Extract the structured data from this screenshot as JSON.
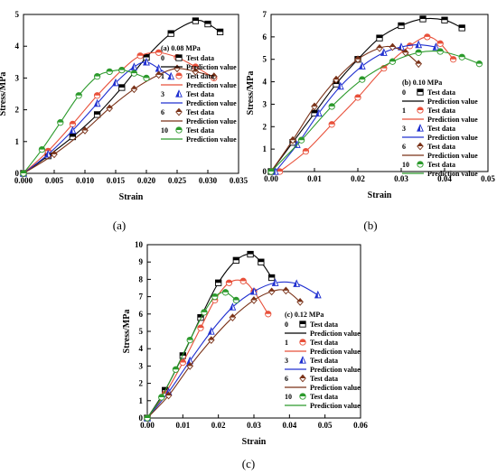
{
  "chart_data": [
    {
      "type": "line",
      "panel": "a",
      "caption": "(a)",
      "legend_title": "(a) 0.08 MPa",
      "xlabel": "Strain",
      "ylabel": "Stress/MPa",
      "xlim": [
        0,
        0.035
      ],
      "ylim": [
        0,
        5
      ],
      "xticks": [
        "0.000",
        "0.005",
        "0.010",
        "0.015",
        "0.020",
        "0.025",
        "0.030",
        "0.035"
      ],
      "yticks": [
        "0",
        "1",
        "2",
        "3",
        "4",
        "5"
      ],
      "legend_position": "right",
      "test_label": "Test data",
      "pred_label": "Prediction value",
      "series": [
        {
          "name": "0",
          "color": "#000000",
          "marker": "square-half",
          "x": [
            0,
            0.004,
            0.008,
            0.012,
            0.016,
            0.02,
            0.024,
            0.028,
            0.03,
            0.032
          ],
          "y": [
            0,
            0.55,
            1.15,
            1.85,
            2.7,
            3.65,
            4.4,
            4.8,
            4.7,
            4.45
          ]
        },
        {
          "name": "1",
          "color": "#e8503a",
          "marker": "circle-half",
          "x": [
            0,
            0.004,
            0.008,
            0.012,
            0.016,
            0.019,
            0.022,
            0.025,
            0.028,
            0.031
          ],
          "y": [
            0,
            0.7,
            1.55,
            2.45,
            3.25,
            3.7,
            3.8,
            3.65,
            3.35,
            3.0
          ]
        },
        {
          "name": "3",
          "color": "#2030d0",
          "marker": "triangle-half",
          "x": [
            0,
            0.004,
            0.008,
            0.012,
            0.015,
            0.018,
            0.02,
            0.022,
            0.024
          ],
          "y": [
            0,
            0.6,
            1.35,
            2.2,
            2.85,
            3.35,
            3.5,
            3.3,
            3.05
          ]
        },
        {
          "name": "6",
          "color": "#7a3218",
          "marker": "diamond-half",
          "x": [
            0,
            0.005,
            0.01,
            0.014,
            0.018,
            0.022,
            0.025,
            0.028,
            0.031
          ],
          "y": [
            0,
            0.6,
            1.35,
            2.05,
            2.65,
            3.1,
            3.3,
            3.2,
            3.05
          ]
        },
        {
          "name": "10",
          "color": "#2c9a2c",
          "marker": "circle-half",
          "x": [
            0,
            0.003,
            0.006,
            0.009,
            0.012,
            0.014,
            0.016,
            0.018,
            0.02
          ],
          "y": [
            0,
            0.75,
            1.6,
            2.45,
            3.05,
            3.2,
            3.25,
            3.15,
            3.0
          ]
        }
      ]
    },
    {
      "type": "line",
      "panel": "b",
      "caption": "(b)",
      "legend_title": "(b) 0.10 MPa",
      "xlabel": "Strain",
      "ylabel": "Stress/MPa",
      "xlim": [
        0,
        0.05
      ],
      "ylim": [
        0,
        7
      ],
      "xticks": [
        "0.00",
        "0.01",
        "0.02",
        "0.03",
        "0.04",
        "0.05"
      ],
      "yticks": [
        "0",
        "1",
        "2",
        "3",
        "4",
        "5",
        "6",
        "7"
      ],
      "legend_position": "bottom-right",
      "test_label": "Test data",
      "pred_label": "Prediction value",
      "series": [
        {
          "name": "0",
          "color": "#000000",
          "marker": "square-half",
          "x": [
            0,
            0.005,
            0.01,
            0.015,
            0.02,
            0.025,
            0.03,
            0.035,
            0.04,
            0.044
          ],
          "y": [
            0,
            1.3,
            2.6,
            3.9,
            5.0,
            5.95,
            6.5,
            6.8,
            6.75,
            6.4
          ]
        },
        {
          "name": "1",
          "color": "#e8503a",
          "marker": "circle-half",
          "x": [
            0.002,
            0.008,
            0.014,
            0.02,
            0.026,
            0.032,
            0.036,
            0.039,
            0.042
          ],
          "y": [
            0,
            0.9,
            2.1,
            3.3,
            4.6,
            5.6,
            6.0,
            5.7,
            5.0
          ]
        },
        {
          "name": "3",
          "color": "#2030d0",
          "marker": "triangle-half",
          "x": [
            0.001,
            0.006,
            0.011,
            0.016,
            0.021,
            0.026,
            0.03,
            0.034,
            0.038
          ],
          "y": [
            0,
            1.2,
            2.6,
            3.8,
            4.7,
            5.3,
            5.55,
            5.65,
            5.55
          ]
        },
        {
          "name": "6",
          "color": "#7a3218",
          "marker": "diamond-half",
          "x": [
            0,
            0.005,
            0.01,
            0.015,
            0.02,
            0.025,
            0.028,
            0.031,
            0.034
          ],
          "y": [
            0,
            1.4,
            2.9,
            4.1,
            5.0,
            5.5,
            5.55,
            5.3,
            4.8
          ]
        },
        {
          "name": "10",
          "color": "#2c9a2c",
          "marker": "circle-half",
          "x": [
            0,
            0.007,
            0.014,
            0.021,
            0.028,
            0.034,
            0.039,
            0.044,
            0.048
          ],
          "y": [
            0,
            1.4,
            2.9,
            4.1,
            4.9,
            5.3,
            5.35,
            5.1,
            4.8
          ]
        }
      ]
    },
    {
      "type": "line",
      "panel": "c",
      "caption": "(c)",
      "legend_title": "(c) 0.12 MPa",
      "xlabel": "Strain",
      "ylabel": "Stress/MPa",
      "xlim": [
        0,
        0.06
      ],
      "ylim": [
        0,
        10
      ],
      "xticks": [
        "0.00",
        "0.01",
        "0.02",
        "0.03",
        "0.04",
        "0.05",
        "0.06"
      ],
      "yticks": [
        "0",
        "1",
        "2",
        "3",
        "4",
        "5",
        "6",
        "7",
        "8",
        "9",
        "10"
      ],
      "legend_position": "right",
      "test_label": "Test data",
      "pred_label": "Prediction value",
      "series": [
        {
          "name": "0",
          "color": "#000000",
          "marker": "square-half",
          "x": [
            0,
            0.005,
            0.01,
            0.015,
            0.02,
            0.025,
            0.029,
            0.032,
            0.035
          ],
          "y": [
            0,
            1.6,
            3.6,
            5.8,
            7.8,
            9.1,
            9.45,
            9.0,
            8.1
          ]
        },
        {
          "name": "1",
          "color": "#e8503a",
          "marker": "circle-half",
          "x": [
            0,
            0.005,
            0.01,
            0.015,
            0.019,
            0.023,
            0.027,
            0.03,
            0.034
          ],
          "y": [
            0,
            1.4,
            3.2,
            5.2,
            6.8,
            7.8,
            7.9,
            7.3,
            6.0
          ]
        },
        {
          "name": "3",
          "color": "#2030d0",
          "marker": "triangle-half",
          "x": [
            0,
            0.006,
            0.012,
            0.018,
            0.024,
            0.03,
            0.036,
            0.042,
            0.048
          ],
          "y": [
            0,
            1.5,
            3.3,
            5.0,
            6.4,
            7.3,
            7.8,
            7.75,
            7.1
          ]
        },
        {
          "name": "6",
          "color": "#7a3218",
          "marker": "diamond-half",
          "x": [
            0,
            0.006,
            0.012,
            0.018,
            0.024,
            0.03,
            0.035,
            0.039,
            0.043
          ],
          "y": [
            0,
            1.3,
            3.0,
            4.5,
            5.8,
            6.8,
            7.3,
            7.35,
            6.7
          ]
        },
        {
          "name": "10",
          "color": "#2c9a2c",
          "marker": "circle-half",
          "x": [
            0,
            0.004,
            0.008,
            0.012,
            0.016,
            0.019,
            0.022,
            0.025
          ],
          "y": [
            0,
            1.2,
            2.8,
            4.5,
            6.1,
            7.0,
            7.25,
            6.8
          ]
        }
      ]
    }
  ]
}
